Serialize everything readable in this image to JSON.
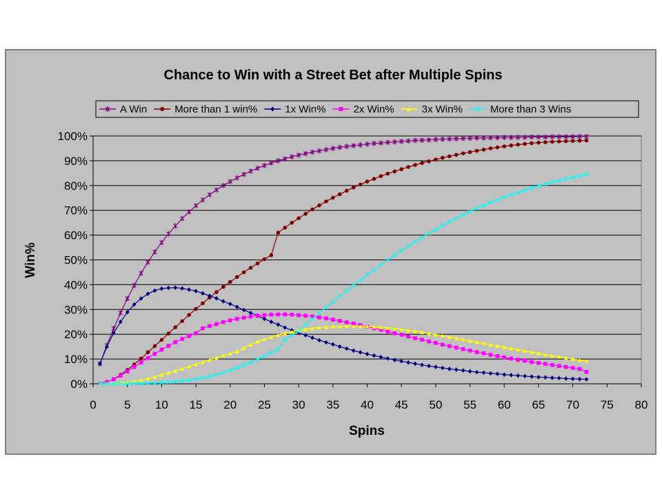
{
  "chart_data": {
    "type": "line",
    "title": "Chance to Win with a Street Bet after Multiple Spins",
    "xlabel": "Spins",
    "ylabel": "Win%",
    "xlim": [
      0,
      80
    ],
    "ylim": [
      0,
      1
    ],
    "x_ticks": [
      0,
      5,
      10,
      15,
      20,
      25,
      30,
      35,
      40,
      45,
      50,
      55,
      60,
      65,
      70,
      75,
      80
    ],
    "y_ticks": [
      "0%",
      "10%",
      "20%",
      "30%",
      "40%",
      "50%",
      "60%",
      "70%",
      "80%",
      "90%",
      "100%"
    ],
    "grid": "horizontal",
    "legend_position": "top",
    "x_start": 1,
    "x_end": 72,
    "series": [
      {
        "name": "A Win",
        "color": "#800080",
        "marker": "star",
        "values": [
          0.081,
          0.155,
          0.223,
          0.286,
          0.344,
          0.397,
          0.446,
          0.491,
          0.532,
          0.57,
          0.605,
          0.637,
          0.667,
          0.694,
          0.719,
          0.742,
          0.763,
          0.782,
          0.8,
          0.816,
          0.831,
          0.845,
          0.858,
          0.87,
          0.881,
          0.891,
          0.9,
          0.908,
          0.916,
          0.923,
          0.929,
          0.935,
          0.94,
          0.945,
          0.95,
          0.954,
          0.958,
          0.961,
          0.964,
          0.967,
          0.97,
          0.972,
          0.974,
          0.976,
          0.978,
          0.98,
          0.982,
          0.983,
          0.984,
          0.986,
          0.987,
          0.988,
          0.989,
          0.99,
          0.991,
          0.992,
          0.992,
          0.993,
          0.993,
          0.994,
          0.994,
          0.995,
          0.995,
          0.996,
          0.996,
          0.996,
          0.997,
          0.997,
          0.997,
          0.997,
          0.998,
          0.998
        ]
      },
      {
        "name": "More than 1 win%",
        "color": "#800000",
        "marker": "circle",
        "values": [
          0.0,
          0.007,
          0.019,
          0.036,
          0.056,
          0.078,
          0.102,
          0.127,
          0.152,
          0.177,
          0.203,
          0.228,
          0.253,
          0.278,
          0.302,
          0.325,
          0.348,
          0.37,
          0.391,
          0.411,
          0.431,
          0.45,
          0.468,
          0.486,
          0.503,
          0.519,
          0.61,
          0.63,
          0.65,
          0.668,
          0.686,
          0.704,
          0.72,
          0.736,
          0.751,
          0.765,
          0.779,
          0.792,
          0.804,
          0.816,
          0.827,
          0.838,
          0.848,
          0.857,
          0.866,
          0.875,
          0.883,
          0.891,
          0.898,
          0.905,
          0.912,
          0.918,
          0.924,
          0.93,
          0.935,
          0.94,
          0.945,
          0.95,
          0.954,
          0.958,
          0.962,
          0.965,
          0.968,
          0.971,
          0.973,
          0.975,
          0.977,
          0.978,
          0.979,
          0.98,
          0.981,
          0.982
        ]
      },
      {
        "name": "1x Win%",
        "color": "#000080",
        "marker": "diamond",
        "values": [
          0.081,
          0.149,
          0.205,
          0.25,
          0.289,
          0.32,
          0.344,
          0.363,
          0.376,
          0.384,
          0.387,
          0.388,
          0.385,
          0.38,
          0.374,
          0.365,
          0.355,
          0.345,
          0.333,
          0.322,
          0.31,
          0.298,
          0.286,
          0.274,
          0.262,
          0.25,
          0.239,
          0.227,
          0.216,
          0.206,
          0.196,
          0.186,
          0.176,
          0.167,
          0.159,
          0.15,
          0.142,
          0.134,
          0.127,
          0.12,
          0.114,
          0.108,
          0.102,
          0.096,
          0.091,
          0.086,
          0.081,
          0.076,
          0.072,
          0.068,
          0.064,
          0.06,
          0.057,
          0.054,
          0.05,
          0.047,
          0.045,
          0.042,
          0.04,
          0.037,
          0.035,
          0.033,
          0.031,
          0.029,
          0.027,
          0.026,
          0.024,
          0.023,
          0.021,
          0.02,
          0.019,
          0.018
        ]
      },
      {
        "name": "2x Win%",
        "color": "#ff00ff",
        "marker": "square",
        "values": [
          0.0,
          0.007,
          0.018,
          0.033,
          0.05,
          0.068,
          0.086,
          0.104,
          0.121,
          0.138,
          0.153,
          0.168,
          0.181,
          0.193,
          0.204,
          0.224,
          0.233,
          0.241,
          0.249,
          0.256,
          0.262,
          0.267,
          0.271,
          0.275,
          0.277,
          0.279,
          0.28,
          0.28,
          0.279,
          0.277,
          0.275,
          0.272,
          0.268,
          0.264,
          0.259,
          0.254,
          0.248,
          0.243,
          0.237,
          0.23,
          0.224,
          0.218,
          0.211,
          0.204,
          0.198,
          0.191,
          0.184,
          0.178,
          0.171,
          0.165,
          0.158,
          0.152,
          0.146,
          0.14,
          0.134,
          0.128,
          0.123,
          0.117,
          0.112,
          0.107,
          0.102,
          0.097,
          0.093,
          0.088,
          0.084,
          0.08,
          0.076,
          0.072,
          0.068,
          0.064,
          0.06,
          0.048
        ]
      },
      {
        "name": "3x Win%",
        "color": "#ffff00",
        "marker": "triangle",
        "values": [
          0.0,
          0.0,
          0.001,
          0.003,
          0.006,
          0.01,
          0.015,
          0.021,
          0.028,
          0.036,
          0.044,
          0.053,
          0.061,
          0.07,
          0.079,
          0.088,
          0.097,
          0.106,
          0.114,
          0.122,
          0.13,
          0.145,
          0.158,
          0.17,
          0.18,
          0.189,
          0.197,
          0.204,
          0.21,
          0.215,
          0.22,
          0.224,
          0.227,
          0.229,
          0.231,
          0.232,
          0.233,
          0.233,
          0.233,
          0.232,
          0.23,
          0.228,
          0.226,
          0.223,
          0.22,
          0.216,
          0.212,
          0.208,
          0.203,
          0.199,
          0.194,
          0.189,
          0.184,
          0.179,
          0.174,
          0.169,
          0.164,
          0.158,
          0.153,
          0.148,
          0.143,
          0.138,
          0.133,
          0.128,
          0.123,
          0.118,
          0.113,
          0.109,
          0.104,
          0.1,
          0.096,
          0.092
        ]
      },
      {
        "name": "More than 3 Wins",
        "color": "#00ffff",
        "marker": "x",
        "values": [
          0.0,
          0.0,
          0.0,
          0.0,
          0.0,
          0.001,
          0.001,
          0.002,
          0.003,
          0.005,
          0.007,
          0.009,
          0.012,
          0.015,
          0.019,
          0.024,
          0.03,
          0.037,
          0.045,
          0.054,
          0.064,
          0.075,
          0.086,
          0.099,
          0.112,
          0.126,
          0.14,
          0.178,
          0.195,
          0.212,
          0.24,
          0.262,
          0.286,
          0.308,
          0.331,
          0.353,
          0.375,
          0.397,
          0.418,
          0.44,
          0.46,
          0.481,
          0.5,
          0.519,
          0.538,
          0.556,
          0.574,
          0.591,
          0.607,
          0.623,
          0.639,
          0.654,
          0.668,
          0.682,
          0.695,
          0.708,
          0.72,
          0.731,
          0.742,
          0.753,
          0.763,
          0.772,
          0.781,
          0.79,
          0.798,
          0.806,
          0.813,
          0.82,
          0.827,
          0.833,
          0.839,
          0.845
        ]
      }
    ]
  }
}
